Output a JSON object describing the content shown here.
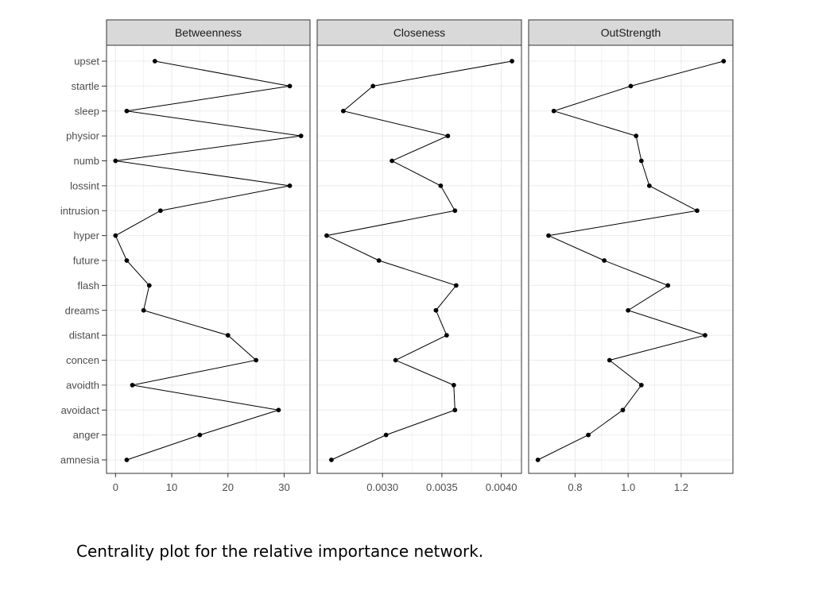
{
  "chart_data": {
    "type": "line",
    "orientation": "horizontal",
    "categories": [
      "upset",
      "startle",
      "sleep",
      "physior",
      "numb",
      "lossint",
      "intrusion",
      "hyper",
      "future",
      "flash",
      "dreams",
      "distant",
      "concen",
      "avoidth",
      "avoidact",
      "anger",
      "amnesia"
    ],
    "grid": true,
    "panels": [
      {
        "name": "Betweenness",
        "values": [
          7,
          31,
          2,
          33,
          0,
          31,
          8,
          0,
          2,
          6,
          5,
          20,
          25,
          3,
          29,
          15,
          2
        ],
        "xlim": [
          -1.6,
          34.6
        ],
        "ticks": [
          0,
          10,
          20,
          30
        ],
        "tick_labels": [
          "0",
          "10",
          "20",
          "30"
        ]
      },
      {
        "name": "Closeness",
        "values": [
          0.00409,
          0.00292,
          0.00267,
          0.00355,
          0.00308,
          0.00349,
          0.00361,
          0.00253,
          0.00297,
          0.00362,
          0.00345,
          0.00354,
          0.00311,
          0.0036,
          0.00361,
          0.00303,
          0.00257
        ],
        "xlim": [
          0.00245,
          0.00417
        ],
        "ticks": [
          0.003,
          0.0035,
          0.004
        ],
        "tick_labels": [
          "0.0030",
          "0.0035",
          "0.0040"
        ]
      },
      {
        "name": "OutStrength",
        "values": [
          1.36,
          1.01,
          0.72,
          1.03,
          1.05,
          1.08,
          1.26,
          0.7,
          0.91,
          1.15,
          1.0,
          1.29,
          0.93,
          1.05,
          0.98,
          0.85,
          0.66
        ],
        "xlim": [
          0.625,
          1.395
        ],
        "ticks": [
          0.8,
          1.0,
          1.2
        ],
        "tick_labels": [
          "0.8",
          "1.0",
          "1.2"
        ]
      }
    ]
  },
  "caption": "Centrality plot for the relative importance network."
}
